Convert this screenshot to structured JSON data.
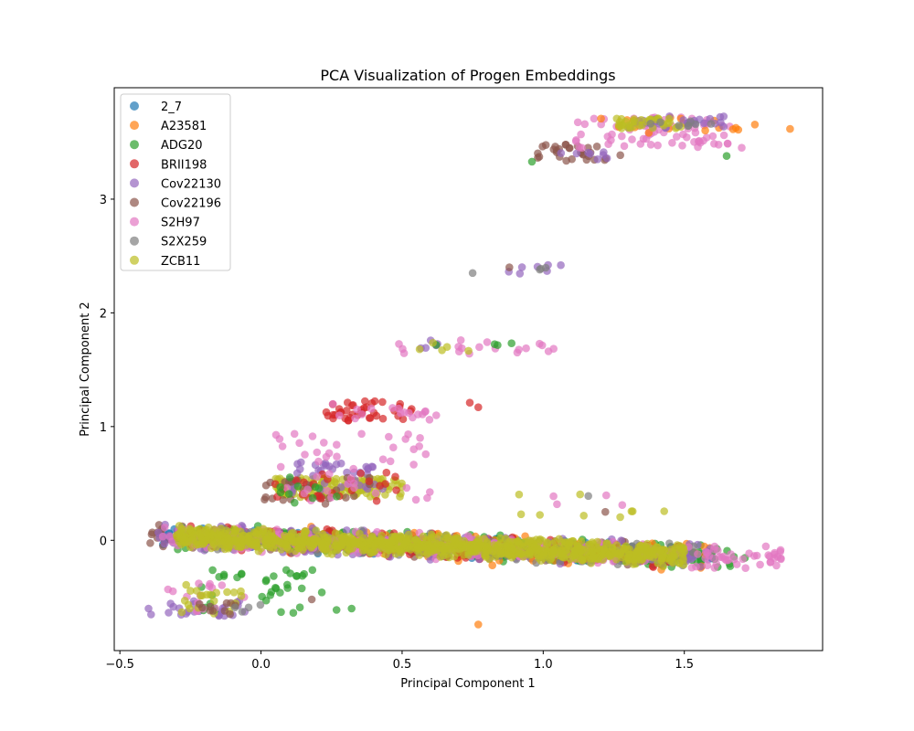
{
  "chart_data": {
    "type": "scatter",
    "title": "PCA Visualization of Progen Embeddings",
    "xlabel": "Principal Component 1",
    "ylabel": "Principal Component 2",
    "xlim": [
      -0.52,
      1.99
    ],
    "ylim": [
      -0.97,
      3.98
    ],
    "xticks": [
      -0.5,
      0.0,
      0.5,
      1.0,
      1.5
    ],
    "xtick_labels": [
      "−0.5",
      "0.0",
      "0.5",
      "1.0",
      "1.5"
    ],
    "yticks": [
      0,
      1,
      2,
      3
    ],
    "ytick_labels": [
      "0",
      "1",
      "2",
      "3"
    ],
    "grid": false,
    "legend_position": "upper-left",
    "series": [
      {
        "name": "2_7",
        "color": "#1f77b4"
      },
      {
        "name": "A23581",
        "color": "#ff7f0e"
      },
      {
        "name": "ADG20",
        "color": "#2ca02c"
      },
      {
        "name": "BRII198",
        "color": "#d62728"
      },
      {
        "name": "Cov22130",
        "color": "#9467bd"
      },
      {
        "name": "Cov22196",
        "color": "#8c564b"
      },
      {
        "name": "S2H97",
        "color": "#e377c2"
      },
      {
        "name": "S2X259",
        "color": "#7f7f7f"
      },
      {
        "name": "ZCB11",
        "color": "#bcbd22"
      }
    ],
    "clusters": [
      {
        "series": "2_7",
        "x": [
          -0.35,
          1.6
        ],
        "y": [
          -0.15,
          0.12
        ],
        "n": 250,
        "dist": "band"
      },
      {
        "series": "Cov22196",
        "x": [
          -0.4,
          1.5
        ],
        "y": [
          -0.15,
          0.12
        ],
        "n": 200,
        "dist": "band"
      },
      {
        "series": "ADG20",
        "x": [
          -0.3,
          1.72
        ],
        "y": [
          -0.2,
          0.12
        ],
        "n": 240,
        "dist": "band"
      },
      {
        "series": "A23581",
        "x": [
          0.1,
          1.6
        ],
        "y": [
          -0.25,
          0.1
        ],
        "n": 160,
        "dist": "band"
      },
      {
        "series": "BRII198",
        "x": [
          -0.3,
          1.5
        ],
        "y": [
          -0.2,
          0.12
        ],
        "n": 200,
        "dist": "band"
      },
      {
        "series": "Cov22130",
        "x": [
          -0.38,
          1.6
        ],
        "y": [
          -0.2,
          0.15
        ],
        "n": 240,
        "dist": "band"
      },
      {
        "series": "S2X259",
        "x": [
          -0.2,
          1.55
        ],
        "y": [
          -0.2,
          0.12
        ],
        "n": 150,
        "dist": "band"
      },
      {
        "series": "S2H97",
        "x": [
          -0.35,
          1.85
        ],
        "y": [
          -0.2,
          0.1
        ],
        "n": 260,
        "dist": "band"
      },
      {
        "series": "ZCB11",
        "x": [
          -0.3,
          1.5
        ],
        "y": [
          -0.15,
          0.12
        ],
        "n": 900,
        "dist": "band"
      },
      {
        "series": "Cov22130",
        "x": [
          -0.4,
          -0.05
        ],
        "y": [
          -0.68,
          -0.52
        ],
        "n": 25,
        "dist": "box"
      },
      {
        "series": "ADG20",
        "x": [
          -0.25,
          0.33
        ],
        "y": [
          -0.65,
          -0.25
        ],
        "n": 40,
        "dist": "box"
      },
      {
        "series": "S2H97",
        "x": [
          -0.35,
          -0.05
        ],
        "y": [
          -0.65,
          -0.38
        ],
        "n": 15,
        "dist": "box"
      },
      {
        "series": "ZCB11",
        "x": [
          -0.3,
          -0.05
        ],
        "y": [
          -0.65,
          -0.38
        ],
        "n": 22,
        "dist": "box"
      },
      {
        "series": "Cov22196",
        "x": [
          -0.3,
          -0.08
        ],
        "y": [
          -0.65,
          -0.55
        ],
        "n": 10,
        "dist": "box"
      },
      {
        "series": "S2X259",
        "x": [
          -0.1,
          0.0
        ],
        "y": [
          -0.66,
          -0.55
        ],
        "n": 4,
        "dist": "box"
      },
      {
        "series": "ZCB11",
        "x": [
          0.05,
          0.5
        ],
        "y": [
          0.38,
          0.55
        ],
        "n": 140,
        "dist": "box"
      },
      {
        "series": "Cov22130",
        "x": [
          0.1,
          0.45
        ],
        "y": [
          0.4,
          0.7
        ],
        "n": 40,
        "dist": "box"
      },
      {
        "series": "Cov22196",
        "x": [
          0.0,
          0.4
        ],
        "y": [
          0.3,
          0.55
        ],
        "n": 25,
        "dist": "box"
      },
      {
        "series": "BRII198",
        "x": [
          0.05,
          0.5
        ],
        "y": [
          0.33,
          0.6
        ],
        "n": 25,
        "dist": "box"
      },
      {
        "series": "S2H97",
        "x": [
          0.05,
          0.6
        ],
        "y": [
          0.35,
          0.95
        ],
        "n": 45,
        "dist": "box"
      },
      {
        "series": "ADG20",
        "x": [
          0.05,
          0.3
        ],
        "y": [
          0.33,
          0.56
        ],
        "n": 10,
        "dist": "box"
      },
      {
        "series": "BRII198",
        "x": [
          0.23,
          0.55
        ],
        "y": [
          1.05,
          1.23
        ],
        "n": 40,
        "dist": "box"
      },
      {
        "series": "S2H97",
        "x": [
          0.25,
          0.63
        ],
        "y": [
          1.04,
          1.2
        ],
        "n": 18,
        "dist": "box"
      },
      {
        "series": "S2H97",
        "x": [
          0.48,
          1.1
        ],
        "y": [
          1.64,
          1.76
        ],
        "n": 18,
        "dist": "box"
      },
      {
        "series": "Cov22130",
        "x": [
          0.55,
          0.65
        ],
        "y": [
          1.68,
          1.76
        ],
        "n": 5,
        "dist": "box"
      },
      {
        "series": "ADG20",
        "x": [
          0.52,
          0.9
        ],
        "y": [
          1.68,
          1.74
        ],
        "n": 4,
        "dist": "box"
      },
      {
        "series": "ZCB11",
        "x": [
          0.55,
          0.75
        ],
        "y": [
          1.65,
          1.75
        ],
        "n": 5,
        "dist": "box"
      },
      {
        "series": "Cov22130",
        "x": [
          0.86,
          1.1
        ],
        "y": [
          2.34,
          2.45
        ],
        "n": 7,
        "dist": "box"
      },
      {
        "series": "S2X259",
        "x": [
          0.98,
          1.02
        ],
        "y": [
          2.37,
          2.43
        ],
        "n": 3,
        "dist": "box"
      },
      {
        "series": "Cov22196",
        "x": [
          0.96,
          1.28
        ],
        "y": [
          3.33,
          3.49
        ],
        "n": 30,
        "dist": "box"
      },
      {
        "series": "Cov22130",
        "x": [
          1.05,
          1.25
        ],
        "y": [
          3.35,
          3.43
        ],
        "n": 8,
        "dist": "box"
      },
      {
        "series": "S2H97",
        "x": [
          1.1,
          1.72
        ],
        "y": [
          3.45,
          3.72
        ],
        "n": 70,
        "dist": "box"
      },
      {
        "series": "A23581",
        "x": [
          1.2,
          1.88
        ],
        "y": [
          3.58,
          3.72
        ],
        "n": 18,
        "dist": "box"
      },
      {
        "series": "Cov22130",
        "x": [
          1.3,
          1.65
        ],
        "y": [
          3.62,
          3.73
        ],
        "n": 30,
        "dist": "box"
      },
      {
        "series": "ZCB11",
        "x": [
          1.25,
          1.5
        ],
        "y": [
          3.62,
          3.72
        ],
        "n": 35,
        "dist": "box"
      },
      {
        "series": "S2X259",
        "x": [
          1.35,
          1.6
        ],
        "y": [
          3.64,
          3.7
        ],
        "n": 8,
        "dist": "box"
      },
      {
        "series": "ZCB11",
        "x": [
          0.9,
          1.65
        ],
        "y": [
          0.2,
          0.42
        ],
        "n": 9,
        "dist": "box"
      },
      {
        "series": "S2H97",
        "x": [
          0.95,
          1.3
        ],
        "y": [
          0.3,
          0.4
        ],
        "n": 3,
        "dist": "box"
      }
    ],
    "points": [
      {
        "series": "A23581",
        "x": 0.77,
        "y": -0.74
      },
      {
        "series": "Cov22196",
        "x": 0.18,
        "y": -0.52
      },
      {
        "series": "ADG20",
        "x": 1.65,
        "y": 3.38
      },
      {
        "series": "ADG20",
        "x": 0.96,
        "y": 3.33
      },
      {
        "series": "S2X259",
        "x": 0.75,
        "y": 2.35
      },
      {
        "series": "Cov22196",
        "x": 0.88,
        "y": 2.4
      },
      {
        "series": "BRII198",
        "x": 0.74,
        "y": 1.21
      },
      {
        "series": "BRII198",
        "x": 0.77,
        "y": 1.17
      },
      {
        "series": "Cov22196",
        "x": 1.22,
        "y": 0.25
      },
      {
        "series": "S2X259",
        "x": 1.16,
        "y": 0.39
      },
      {
        "series": "S2H97",
        "x": 1.28,
        "y": 0.31
      },
      {
        "series": "S2H97",
        "x": 1.82,
        "y": -0.11
      },
      {
        "series": "S2H97",
        "x": 1.84,
        "y": -0.1
      },
      {
        "series": "A23581",
        "x": 0.82,
        "y": -0.22
      }
    ]
  }
}
